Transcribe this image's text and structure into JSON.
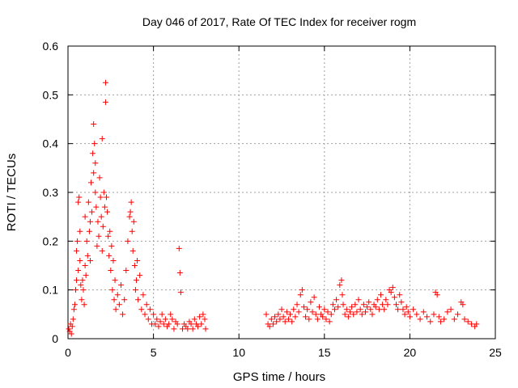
{
  "chart_data": {
    "type": "scatter",
    "title": "Day 046 of 2017, Rate Of TEC Index for receiver rogm",
    "xlabel": "GPS time / hours",
    "ylabel": "ROTI / TECUs",
    "xlim": [
      0,
      25
    ],
    "ylim": [
      0,
      0.6
    ],
    "xticks": [
      0,
      5,
      10,
      15,
      20,
      25
    ],
    "yticks": [
      0,
      0.1,
      0.2,
      0.3,
      0.4,
      0.5,
      0.6
    ],
    "xtick_labels": [
      "0",
      "5",
      "10",
      "15",
      "20",
      "25"
    ],
    "ytick_labels": [
      "0",
      "0.1",
      "0.2",
      "0.3",
      "0.4",
      "0.5",
      "0.6"
    ],
    "grid": true,
    "marker": "+",
    "color": "#ff0000",
    "series": [
      {
        "name": "ROTI",
        "points": [
          [
            0.05,
            0.02
          ],
          [
            0.1,
            0.015
          ],
          [
            0.15,
            0.03
          ],
          [
            0.2,
            0.01
          ],
          [
            0.25,
            0.025
          ],
          [
            0.3,
            0.04
          ],
          [
            0.35,
            0.06
          ],
          [
            0.4,
            0.07
          ],
          [
            0.45,
            0.1
          ],
          [
            0.5,
            0.12
          ],
          [
            0.5,
            0.18
          ],
          [
            0.55,
            0.2
          ],
          [
            0.6,
            0.28
          ],
          [
            0.6,
            0.14
          ],
          [
            0.65,
            0.29
          ],
          [
            0.7,
            0.22
          ],
          [
            0.7,
            0.16
          ],
          [
            0.75,
            0.11
          ],
          [
            0.8,
            0.08
          ],
          [
            0.85,
            0.12
          ],
          [
            0.9,
            0.1
          ],
          [
            0.95,
            0.07
          ],
          [
            1.0,
            0.15
          ],
          [
            1.0,
            0.25
          ],
          [
            1.05,
            0.13
          ],
          [
            1.1,
            0.2
          ],
          [
            1.15,
            0.17
          ],
          [
            1.2,
            0.28
          ],
          [
            1.25,
            0.22
          ],
          [
            1.3,
            0.24
          ],
          [
            1.3,
            0.16
          ],
          [
            1.35,
            0.32
          ],
          [
            1.4,
            0.26
          ],
          [
            1.45,
            0.38
          ],
          [
            1.5,
            0.44
          ],
          [
            1.5,
            0.34
          ],
          [
            1.55,
            0.4
          ],
          [
            1.6,
            0.36
          ],
          [
            1.6,
            0.3
          ],
          [
            1.65,
            0.27
          ],
          [
            1.7,
            0.19
          ],
          [
            1.75,
            0.24
          ],
          [
            1.8,
            0.21
          ],
          [
            1.85,
            0.33
          ],
          [
            1.9,
            0.29
          ],
          [
            1.95,
            0.25
          ],
          [
            2.0,
            0.41
          ],
          [
            2.0,
            0.18
          ],
          [
            2.05,
            0.23
          ],
          [
            2.1,
            0.3
          ],
          [
            2.15,
            0.27
          ],
          [
            2.2,
            0.485
          ],
          [
            2.2,
            0.525
          ],
          [
            2.25,
            0.29
          ],
          [
            2.3,
            0.26
          ],
          [
            2.35,
            0.21
          ],
          [
            2.4,
            0.17
          ],
          [
            2.45,
            0.22
          ],
          [
            2.5,
            0.14
          ],
          [
            2.55,
            0.19
          ],
          [
            2.6,
            0.1
          ],
          [
            2.65,
            0.16
          ],
          [
            2.7,
            0.08
          ],
          [
            2.75,
            0.12
          ],
          [
            2.8,
            0.06
          ],
          [
            2.9,
            0.09
          ],
          [
            3.0,
            0.07
          ],
          [
            3.1,
            0.11
          ],
          [
            3.2,
            0.05
          ],
          [
            3.3,
            0.08
          ],
          [
            3.4,
            0.14
          ],
          [
            3.5,
            0.2
          ],
          [
            3.6,
            0.25
          ],
          [
            3.65,
            0.26
          ],
          [
            3.7,
            0.28
          ],
          [
            3.75,
            0.22
          ],
          [
            3.8,
            0.18
          ],
          [
            3.85,
            0.24
          ],
          [
            3.9,
            0.15
          ],
          [
            3.95,
            0.1
          ],
          [
            4.0,
            0.12
          ],
          [
            4.05,
            0.16
          ],
          [
            4.1,
            0.08
          ],
          [
            4.2,
            0.13
          ],
          [
            4.3,
            0.06
          ],
          [
            4.4,
            0.09
          ],
          [
            4.5,
            0.05
          ],
          [
            4.6,
            0.07
          ],
          [
            4.7,
            0.04
          ],
          [
            4.8,
            0.06
          ],
          [
            4.9,
            0.03
          ],
          [
            5.0,
            0.05
          ],
          [
            5.1,
            0.03
          ],
          [
            5.2,
            0.04
          ],
          [
            5.3,
            0.025
          ],
          [
            5.4,
            0.035
          ],
          [
            5.5,
            0.05
          ],
          [
            5.6,
            0.03
          ],
          [
            5.7,
            0.04
          ],
          [
            5.8,
            0.025
          ],
          [
            5.9,
            0.03
          ],
          [
            6.0,
            0.05
          ],
          [
            6.1,
            0.04
          ],
          [
            6.2,
            0.02
          ],
          [
            6.3,
            0.035
          ],
          [
            6.4,
            0.03
          ],
          [
            6.5,
            0.185
          ],
          [
            6.55,
            0.135
          ],
          [
            6.6,
            0.095
          ],
          [
            6.7,
            0.02
          ],
          [
            6.8,
            0.03
          ],
          [
            6.9,
            0.025
          ],
          [
            7.0,
            0.02
          ],
          [
            7.1,
            0.035
          ],
          [
            7.2,
            0.03
          ],
          [
            7.3,
            0.02
          ],
          [
            7.4,
            0.04
          ],
          [
            7.5,
            0.03
          ],
          [
            7.6,
            0.025
          ],
          [
            7.7,
            0.045
          ],
          [
            7.8,
            0.03
          ],
          [
            7.9,
            0.05
          ],
          [
            8.0,
            0.04
          ],
          [
            8.05,
            0.02
          ],
          [
            11.6,
            0.05
          ],
          [
            11.7,
            0.03
          ],
          [
            11.8,
            0.025
          ],
          [
            11.9,
            0.04
          ],
          [
            12.0,
            0.03
          ],
          [
            12.1,
            0.045
          ],
          [
            12.2,
            0.035
          ],
          [
            12.3,
            0.05
          ],
          [
            12.4,
            0.04
          ],
          [
            12.5,
            0.06
          ],
          [
            12.6,
            0.045
          ],
          [
            12.7,
            0.035
          ],
          [
            12.8,
            0.055
          ],
          [
            12.9,
            0.04
          ],
          [
            13.0,
            0.05
          ],
          [
            13.1,
            0.035
          ],
          [
            13.2,
            0.06
          ],
          [
            13.3,
            0.045
          ],
          [
            13.4,
            0.07
          ],
          [
            13.5,
            0.055
          ],
          [
            13.6,
            0.09
          ],
          [
            13.7,
            0.1
          ],
          [
            13.8,
            0.065
          ],
          [
            13.9,
            0.045
          ],
          [
            14.0,
            0.06
          ],
          [
            14.1,
            0.04
          ],
          [
            14.2,
            0.075
          ],
          [
            14.3,
            0.055
          ],
          [
            14.4,
            0.085
          ],
          [
            14.5,
            0.05
          ],
          [
            14.6,
            0.04
          ],
          [
            14.7,
            0.065
          ],
          [
            14.8,
            0.05
          ],
          [
            14.9,
            0.045
          ],
          [
            15.0,
            0.06
          ],
          [
            15.1,
            0.04
          ],
          [
            15.2,
            0.055
          ],
          [
            15.3,
            0.035
          ],
          [
            15.4,
            0.05
          ],
          [
            15.5,
            0.07
          ],
          [
            15.6,
            0.06
          ],
          [
            15.7,
            0.08
          ],
          [
            15.8,
            0.065
          ],
          [
            15.9,
            0.11
          ],
          [
            16.0,
            0.12
          ],
          [
            16.05,
            0.09
          ],
          [
            16.1,
            0.07
          ],
          [
            16.2,
            0.05
          ],
          [
            16.3,
            0.06
          ],
          [
            16.4,
            0.045
          ],
          [
            16.5,
            0.055
          ],
          [
            16.6,
            0.065
          ],
          [
            16.7,
            0.05
          ],
          [
            16.8,
            0.07
          ],
          [
            16.9,
            0.055
          ],
          [
            17.0,
            0.08
          ],
          [
            17.1,
            0.06
          ],
          [
            17.2,
            0.05
          ],
          [
            17.3,
            0.07
          ],
          [
            17.4,
            0.055
          ],
          [
            17.5,
            0.065
          ],
          [
            17.6,
            0.075
          ],
          [
            17.7,
            0.06
          ],
          [
            17.8,
            0.05
          ],
          [
            17.9,
            0.07
          ],
          [
            18.0,
            0.065
          ],
          [
            18.1,
            0.08
          ],
          [
            18.2,
            0.06
          ],
          [
            18.3,
            0.09
          ],
          [
            18.4,
            0.07
          ],
          [
            18.5,
            0.06
          ],
          [
            18.6,
            0.08
          ],
          [
            18.7,
            0.07
          ],
          [
            18.8,
            0.1
          ],
          [
            18.9,
            0.095
          ],
          [
            19.0,
            0.105
          ],
          [
            19.1,
            0.085
          ],
          [
            19.2,
            0.07
          ],
          [
            19.3,
            0.06
          ],
          [
            19.4,
            0.09
          ],
          [
            19.5,
            0.075
          ],
          [
            19.6,
            0.06
          ],
          [
            19.7,
            0.05
          ],
          [
            19.8,
            0.065
          ],
          [
            19.9,
            0.055
          ],
          [
            20.0,
            0.045
          ],
          [
            20.2,
            0.06
          ],
          [
            20.4,
            0.05
          ],
          [
            20.6,
            0.04
          ],
          [
            20.8,
            0.055
          ],
          [
            21.0,
            0.045
          ],
          [
            21.2,
            0.035
          ],
          [
            21.4,
            0.05
          ],
          [
            21.5,
            0.095
          ],
          [
            21.6,
            0.09
          ],
          [
            21.7,
            0.045
          ],
          [
            21.8,
            0.035
          ],
          [
            22.0,
            0.04
          ],
          [
            22.2,
            0.055
          ],
          [
            22.4,
            0.06
          ],
          [
            22.6,
            0.04
          ],
          [
            22.8,
            0.05
          ],
          [
            23.0,
            0.075
          ],
          [
            23.1,
            0.07
          ],
          [
            23.2,
            0.04
          ],
          [
            23.4,
            0.035
          ],
          [
            23.6,
            0.03
          ],
          [
            23.8,
            0.025
          ],
          [
            23.9,
            0.03
          ]
        ]
      }
    ]
  }
}
